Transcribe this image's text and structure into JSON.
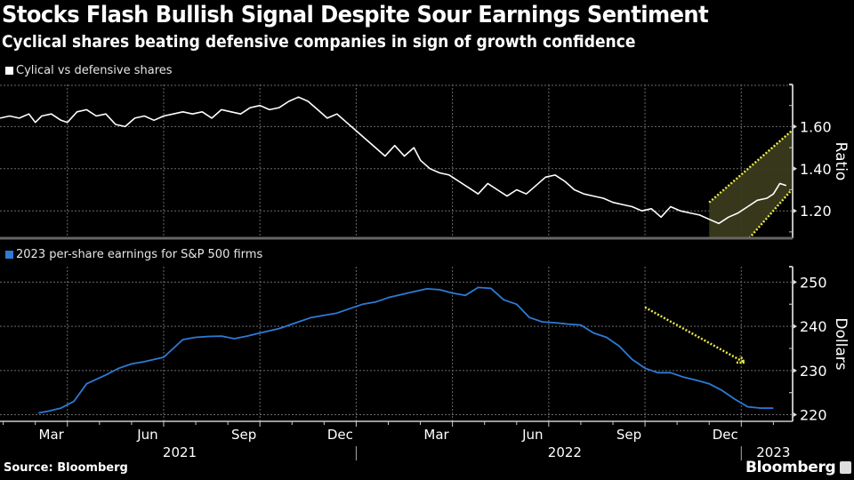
{
  "header": {
    "title": "Stocks Flash Bullish Signal Despite Sour Earnings Sentiment",
    "subtitle": "Cyclical shares beating defensive companies in sign of growth confidence"
  },
  "footer": {
    "source": "Source: Bloomberg",
    "brand": "Bloomberg"
  },
  "colors": {
    "background": "#000000",
    "ratio_line": "#ffffff",
    "eps_line": "#2e7ad6",
    "annotation": "#e8e84a",
    "annotation_fill": "#3a3a1c",
    "grid": "#6a6a6a",
    "axis": "#bdbdbd"
  },
  "chart_data": [
    {
      "type": "line",
      "title": "Cylical vs defensive shares",
      "legend": "Cylical vs defensive shares",
      "ylabel": "Ratio",
      "ylim": [
        1.07,
        1.8
      ],
      "yticks": [
        1.2,
        1.4,
        1.6
      ],
      "ytick_labels": [
        "1.20",
        "1.40",
        "1.60"
      ],
      "grid": true,
      "x_unit": "months since 2021-01-01",
      "xlim": [
        0.9,
        25.6
      ],
      "series": [
        {
          "name": "Cylical vs defensive shares",
          "x": [
            0.9,
            1.2,
            1.5,
            1.8,
            2.0,
            2.2,
            2.5,
            2.8,
            3.0,
            3.3,
            3.6,
            3.9,
            4.2,
            4.5,
            4.8,
            5.1,
            5.4,
            5.7,
            6.0,
            6.3,
            6.6,
            6.9,
            7.2,
            7.5,
            7.8,
            8.1,
            8.4,
            8.7,
            9.0,
            9.3,
            9.6,
            9.9,
            10.2,
            10.5,
            10.8,
            11.1,
            11.4,
            11.7,
            12.0,
            12.3,
            12.6,
            12.9,
            13.2,
            13.5,
            13.8,
            14.0,
            14.3,
            14.6,
            14.9,
            15.2,
            15.5,
            15.8,
            16.1,
            16.4,
            16.7,
            17.0,
            17.3,
            17.6,
            17.9,
            18.2,
            18.5,
            18.8,
            19.1,
            19.4,
            19.7,
            20.0,
            20.3,
            20.6,
            20.9,
            21.2,
            21.5,
            21.8,
            22.1,
            22.4,
            22.7,
            23.0,
            23.3,
            23.6,
            23.9,
            24.2,
            24.5,
            24.8,
            25.0,
            25.2,
            25.4
          ],
          "values": [
            1.64,
            1.65,
            1.64,
            1.66,
            1.62,
            1.65,
            1.66,
            1.63,
            1.62,
            1.67,
            1.68,
            1.65,
            1.66,
            1.61,
            1.6,
            1.64,
            1.65,
            1.63,
            1.65,
            1.66,
            1.67,
            1.66,
            1.67,
            1.64,
            1.68,
            1.67,
            1.66,
            1.69,
            1.7,
            1.68,
            1.69,
            1.72,
            1.74,
            1.72,
            1.68,
            1.64,
            1.66,
            1.62,
            1.58,
            1.54,
            1.5,
            1.46,
            1.51,
            1.46,
            1.5,
            1.44,
            1.4,
            1.38,
            1.37,
            1.34,
            1.31,
            1.28,
            1.33,
            1.3,
            1.27,
            1.3,
            1.28,
            1.32,
            1.36,
            1.37,
            1.34,
            1.3,
            1.28,
            1.27,
            1.26,
            1.24,
            1.23,
            1.22,
            1.2,
            1.21,
            1.17,
            1.22,
            1.2,
            1.19,
            1.18,
            1.16,
            1.14,
            1.17,
            1.19,
            1.22,
            1.25,
            1.26,
            1.28,
            1.33,
            1.32
          ]
        }
      ],
      "annotation": {
        "type": "upward-channel",
        "from": {
          "x": 23.0,
          "y": [
            1.08,
            1.24
          ]
        },
        "to": {
          "x": 25.6,
          "y": [
            1.3,
            1.58
          ]
        }
      }
    },
    {
      "type": "line",
      "title": "2023 per-share earnings for S&P 500 firms",
      "legend": "2023 per-share earnings for S&P 500 firms",
      "ylabel": "Dollars",
      "ylim": [
        218.5,
        253.5
      ],
      "yticks": [
        220,
        230,
        240,
        250
      ],
      "ytick_labels": [
        "220",
        "230",
        "240",
        "250"
      ],
      "grid": true,
      "x_unit": "months since 2021-01-01",
      "xlim": [
        0.9,
        25.6
      ],
      "series": [
        {
          "name": "2023 per-share earnings for S&P 500 firms",
          "x": [
            2.1,
            2.4,
            2.8,
            3.2,
            3.6,
            4.2,
            4.6,
            5.0,
            5.4,
            6.0,
            6.6,
            7.0,
            7.4,
            7.8,
            8.2,
            8.6,
            9.0,
            9.6,
            10.2,
            10.6,
            11.0,
            11.4,
            11.8,
            12.2,
            12.6,
            13.0,
            13.6,
            14.2,
            14.6,
            15.0,
            15.4,
            15.8,
            16.2,
            16.6,
            17.0,
            17.4,
            17.8,
            18.2,
            18.6,
            19.0,
            19.4,
            19.8,
            20.2,
            20.6,
            21.0,
            21.4,
            21.8,
            22.2,
            22.6,
            23.0,
            23.4,
            23.8,
            24.2,
            24.6,
            25.0
          ],
          "values": [
            220.4,
            220.8,
            221.5,
            223.0,
            227.0,
            229.0,
            230.5,
            231.5,
            232.0,
            233.0,
            237.0,
            237.5,
            237.7,
            237.8,
            237.2,
            237.8,
            238.5,
            239.5,
            241.0,
            242.0,
            242.5,
            243.0,
            244.0,
            245.0,
            245.5,
            246.5,
            247.5,
            248.5,
            248.3,
            247.5,
            247.0,
            248.8,
            248.6,
            246.0,
            245.0,
            242.0,
            241.0,
            240.8,
            240.5,
            240.3,
            238.5,
            237.5,
            235.5,
            232.5,
            230.5,
            229.5,
            229.5,
            228.5,
            227.8,
            227.0,
            225.5,
            223.5,
            221.8,
            221.5,
            221.5
          ]
        }
      ],
      "annotation": {
        "type": "downward-arrow",
        "from": {
          "x": 21.0,
          "y": 244.3
        },
        "to": {
          "x": 24.1,
          "y": 231.8
        }
      }
    }
  ],
  "x_axis": {
    "month_labels": [
      "Mar",
      "Jun",
      "Sep",
      "Dec",
      "Mar",
      "Jun",
      "Sep",
      "Dec"
    ],
    "month_positions": [
      2.5,
      5.5,
      8.5,
      11.5,
      14.5,
      17.5,
      20.5,
      23.5
    ],
    "year_labels": [
      "2021",
      "2022",
      "2023"
    ],
    "year_positions": [
      6.5,
      18.5,
      25.0
    ]
  }
}
